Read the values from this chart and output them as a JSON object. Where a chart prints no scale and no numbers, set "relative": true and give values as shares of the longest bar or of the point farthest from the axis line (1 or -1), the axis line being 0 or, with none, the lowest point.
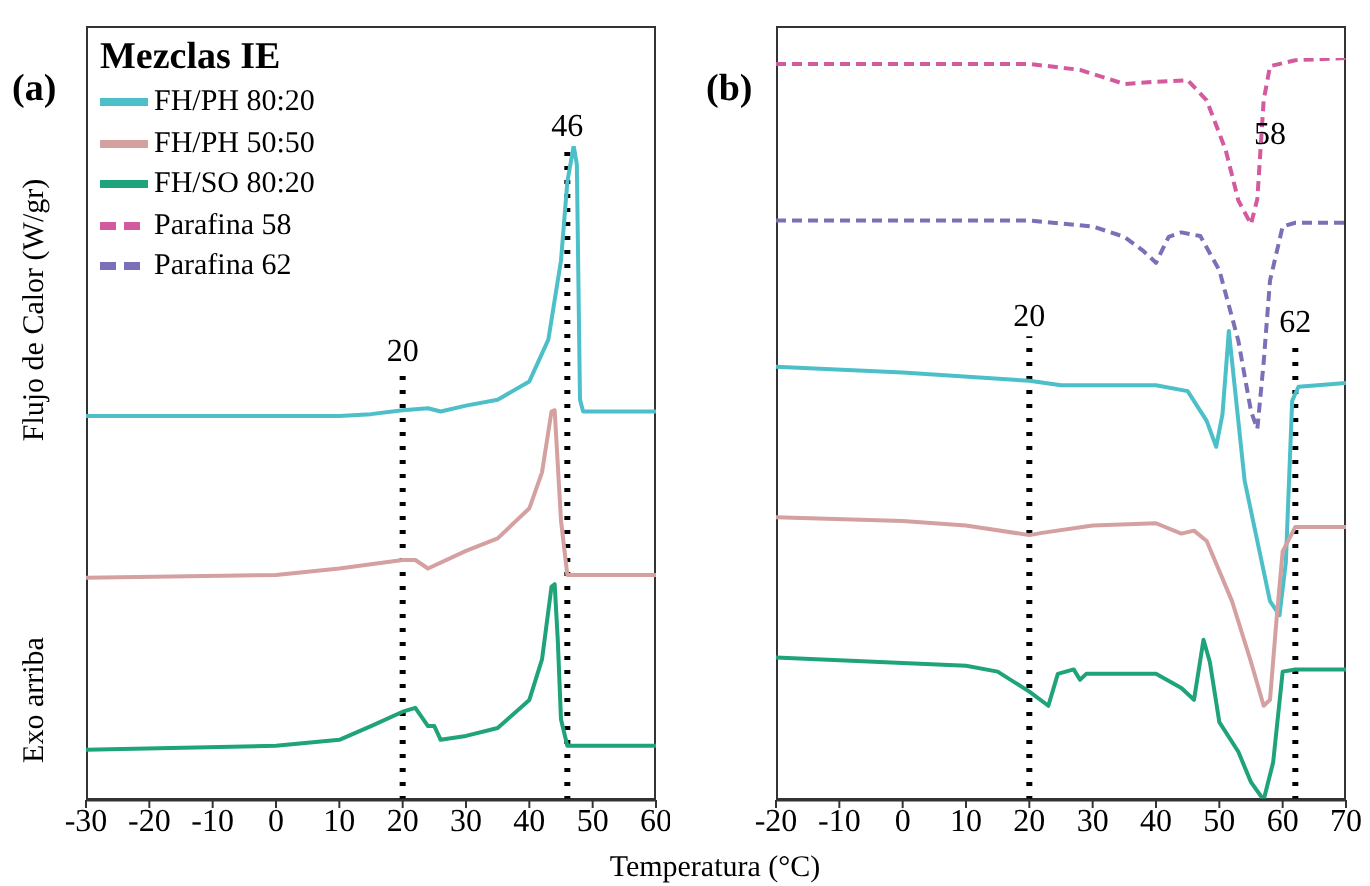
{
  "chart_data": [
    {
      "type": "line",
      "title": "(a)",
      "xlabel": "Temperatura (°C)",
      "ylabel": "Flujo de Calor (W/gr)",
      "annotations": [
        "Exo arriba"
      ],
      "legend_title": "Mezclas IE",
      "legend": "top left",
      "relative": true,
      "xlim": [
        -30,
        60
      ],
      "xticks": [
        -30,
        -20,
        -10,
        0,
        10,
        20,
        30,
        40,
        50,
        60
      ],
      "ref_lines": [
        {
          "axis": "x",
          "value": 20,
          "label": "20",
          "color": "#000000",
          "line_style": "dotted"
        },
        {
          "axis": "x",
          "value": 46,
          "label": "46",
          "color": "#000000",
          "line_style": "dotted"
        }
      ],
      "series": [
        {
          "name": "FH/PH 80:20",
          "color": "#4dbfc9",
          "x": [
            -30,
            0,
            10,
            15,
            20,
            24,
            26,
            30,
            35,
            40,
            43,
            45,
            46,
            47,
            47.5,
            48,
            48.5,
            60
          ],
          "values": [
            0.587,
            0.587,
            0.587,
            0.59,
            0.596,
            0.599,
            0.594,
            0.603,
            0.612,
            0.64,
            0.704,
            0.825,
            0.945,
            1,
            0.972,
            0.612,
            0.594,
            0.594
          ]
        },
        {
          "name": "FH/PH 50:50",
          "color": "#d4a0a0",
          "x": [
            -30,
            0,
            10,
            20,
            22,
            24,
            30,
            35,
            40,
            42,
            43.5,
            44,
            45,
            46,
            60
          ],
          "values": [
            0.34,
            0.344,
            0.354,
            0.367,
            0.367,
            0.354,
            0.381,
            0.4,
            0.446,
            0.501,
            0.594,
            0.596,
            0.427,
            0.344,
            0.344
          ]
        },
        {
          "name": "FH/SO 80:20",
          "color": "#1fa37a",
          "x": [
            -30,
            0,
            10,
            15,
            20,
            22,
            24,
            25,
            26,
            30,
            35,
            40,
            42,
            43.5,
            44,
            44.5,
            45,
            46,
            60
          ],
          "values": [
            0.077,
            0.083,
            0.092,
            0.113,
            0.135,
            0.141,
            0.113,
            0.113,
            0.092,
            0.098,
            0.11,
            0.153,
            0.215,
            0.326,
            0.33,
            0.243,
            0.123,
            0.083,
            0.083
          ]
        }
      ]
    },
    {
      "type": "line",
      "title": "(b)",
      "relative": true,
      "xlim": [
        -20,
        70
      ],
      "xticks": [
        -20,
        -10,
        0,
        10,
        20,
        30,
        40,
        50,
        60,
        70
      ],
      "ref_lines": [
        {
          "axis": "x",
          "value": 20,
          "label": "20",
          "color": "#000000",
          "line_style": "dotted"
        },
        {
          "axis": "x",
          "value": 62,
          "label": "62",
          "color": "#000000",
          "line_style": "dotted"
        }
      ],
      "annotations": [
        {
          "text": "58",
          "x": 58,
          "y": 0.9
        }
      ],
      "series": [
        {
          "name": "Parafina 58",
          "color": "#d45aa0",
          "line_style": "dashed",
          "x": [
            -20,
            20,
            28,
            35,
            40,
            45,
            48,
            51,
            53,
            55,
            56,
            57,
            58,
            62,
            70
          ],
          "values": [
            0.992,
            0.992,
            0.984,
            0.965,
            0.968,
            0.97,
            0.943,
            0.876,
            0.808,
            0.776,
            0.81,
            0.943,
            0.989,
            0.997,
            1
          ]
        },
        {
          "name": "Parafina 62",
          "color": "#7b6fb8",
          "line_style": "dashed",
          "x": [
            -20,
            20,
            30,
            35,
            38,
            40,
            42,
            44,
            47,
            50,
            53,
            55,
            56,
            57,
            58,
            60,
            62,
            70
          ],
          "values": [
            0.781,
            0.781,
            0.773,
            0.759,
            0.74,
            0.724,
            0.759,
            0.765,
            0.76,
            0.714,
            0.619,
            0.524,
            0.5,
            0.59,
            0.7,
            0.773,
            0.778,
            0.778
          ]
        },
        {
          "color": "#4dbfc9",
          "x": [
            -20,
            0,
            20,
            25,
            30,
            40,
            45,
            48,
            49.5,
            50.5,
            51.5,
            52.5,
            54,
            56,
            58,
            59.5,
            60.5,
            61.5,
            62.5,
            70
          ],
          "values": [
            0.584,
            0.576,
            0.565,
            0.559,
            0.559,
            0.559,
            0.551,
            0.511,
            0.476,
            0.52,
            0.632,
            0.551,
            0.43,
            0.349,
            0.268,
            0.249,
            0.32,
            0.538,
            0.557,
            0.562
          ]
        },
        {
          "color": "#d4a0a0",
          "x": [
            -20,
            0,
            10,
            20,
            22,
            30,
            40,
            44,
            46,
            48,
            52,
            55,
            57,
            58,
            59,
            60,
            62,
            70
          ],
          "values": [
            0.381,
            0.376,
            0.37,
            0.357,
            0.36,
            0.37,
            0.373,
            0.359,
            0.363,
            0.349,
            0.268,
            0.186,
            0.127,
            0.135,
            0.24,
            0.335,
            0.368,
            0.368
          ]
        },
        {
          "color": "#1fa37a",
          "x": [
            -20,
            10,
            15,
            20,
            23,
            24.5,
            27,
            28,
            29,
            40,
            44,
            46,
            47.5,
            48.5,
            50,
            53,
            55,
            57,
            58.5,
            60,
            62,
            70
          ],
          "values": [
            0.192,
            0.181,
            0.173,
            0.146,
            0.127,
            0.17,
            0.176,
            0.162,
            0.17,
            0.17,
            0.151,
            0.135,
            0.216,
            0.186,
            0.105,
            0.065,
            0.024,
            0,
            0.051,
            0.173,
            0.176,
            0.176
          ]
        }
      ]
    }
  ]
}
